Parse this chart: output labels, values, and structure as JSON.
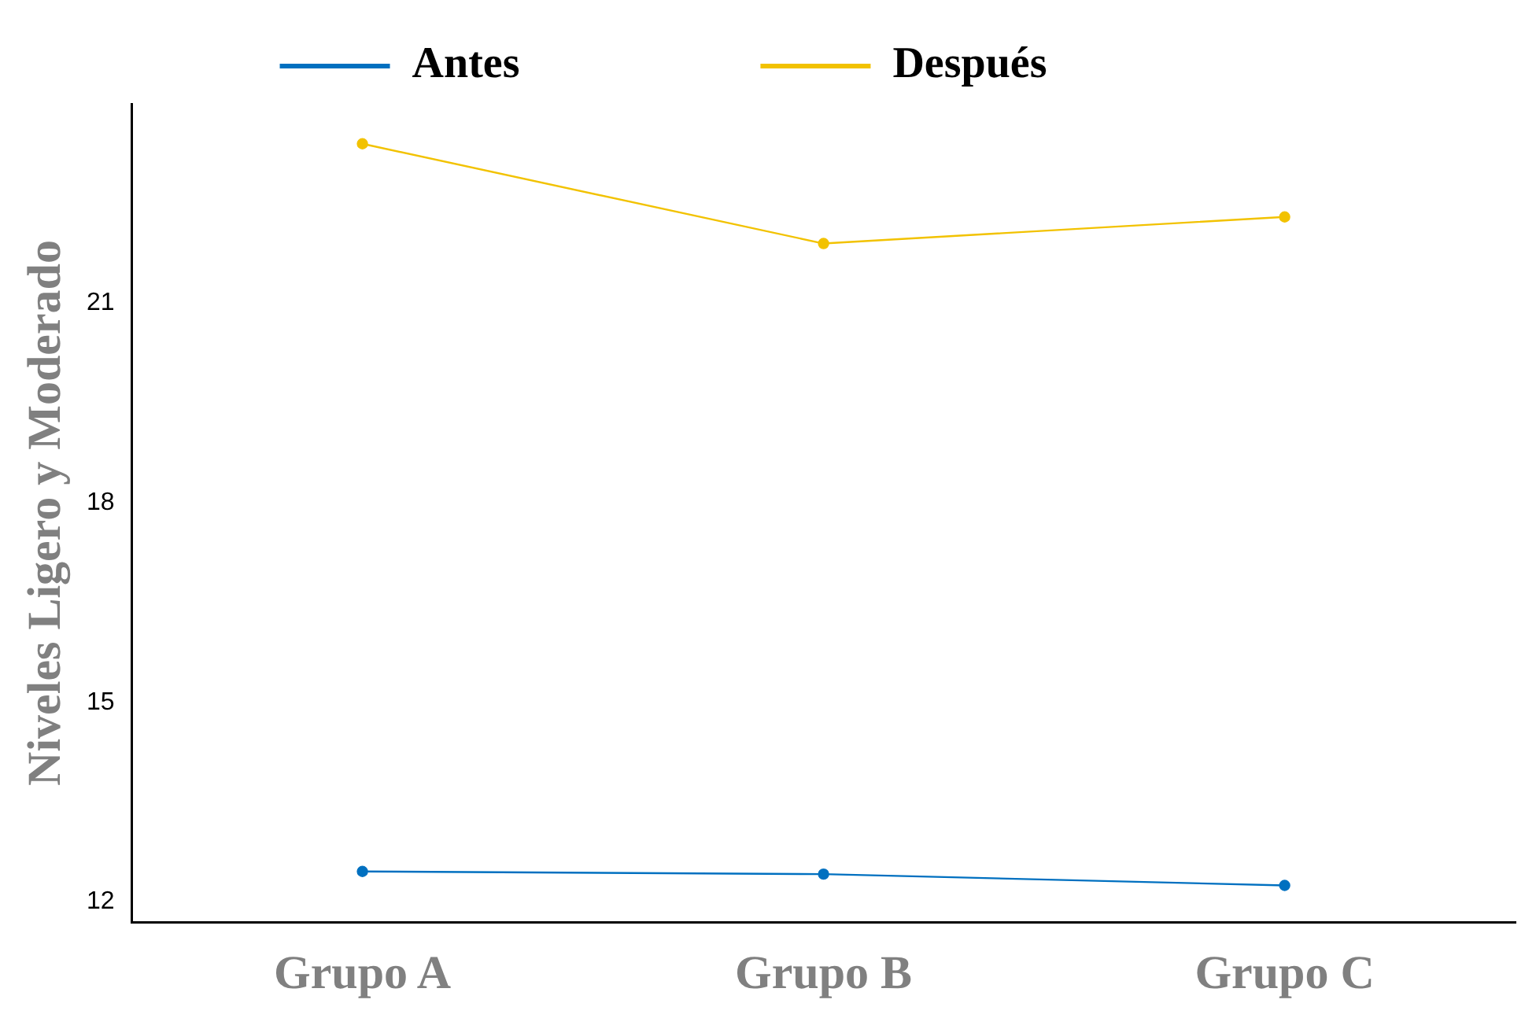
{
  "chart_data": {
    "type": "line",
    "ylabel": "Niveles Ligero y Moderado",
    "categories": [
      "Grupo A",
      "Grupo B",
      "Grupo C"
    ],
    "series": [
      {
        "name": "Antes",
        "color": "#0070c0",
        "values": [
          12.46,
          12.42,
          12.25
        ]
      },
      {
        "name": "Después",
        "color": "#f2c200",
        "values": [
          23.4,
          21.9,
          22.3
        ]
      }
    ],
    "ylim": [
      11.7,
      24
    ],
    "yticks": [
      12,
      15,
      18,
      21
    ],
    "grid": false,
    "legend": "top",
    "marker": "circle",
    "line_style": "solid"
  }
}
